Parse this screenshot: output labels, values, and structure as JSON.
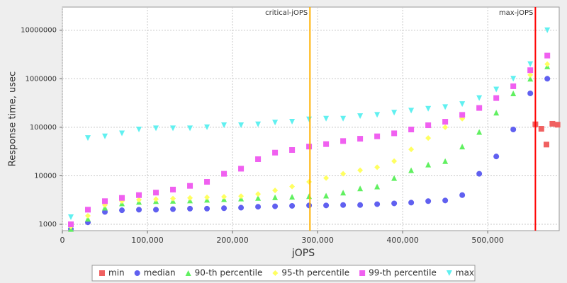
{
  "chart_data": {
    "type": "scatter",
    "x_label": "jOPS",
    "y_label": "Response time, usec",
    "xlim": [
      0,
      584000
    ],
    "ylim": [
      740,
      30000000
    ],
    "log_y": true,
    "grid": true,
    "xticks": [
      0,
      {
        "value": 100000,
        "label": "100,000"
      },
      {
        "value": 200000,
        "label": "200,000"
      },
      {
        "value": 300000,
        "label": "300,000"
      },
      {
        "value": 400000,
        "label": "400,000"
      },
      {
        "value": 500000,
        "label": "500,000"
      }
    ],
    "yticks": [
      1000,
      10000,
      100000,
      1000000,
      10000000
    ],
    "annotations": [
      {
        "x": 291000,
        "label": "critical-jOPS",
        "color": "#ffb000"
      },
      {
        "x": 556000,
        "label": "max-jOPS",
        "color": "#ff0000"
      }
    ],
    "x": [
      10000,
      30000,
      50000,
      70000,
      90000,
      110000,
      130000,
      150000,
      170000,
      190000,
      210000,
      230000,
      250000,
      270000,
      290000,
      310000,
      330000,
      350000,
      370000,
      390000,
      410000,
      430000,
      450000,
      470000,
      490000,
      510000,
      530000,
      550000,
      570000
    ],
    "series": [
      {
        "name": "min",
        "color": "#f06060",
        "marker": "square",
        "x": [
          556000,
          563000,
          569000,
          576000,
          582000
        ],
        "values": [
          115000,
          93000,
          44000,
          118000,
          113000
        ]
      },
      {
        "name": "median",
        "color": "#6060f0",
        "marker": "circle",
        "values": [
          800,
          1100,
          1800,
          1950,
          2000,
          2000,
          2050,
          2100,
          2100,
          2150,
          2200,
          2300,
          2350,
          2400,
          2450,
          2450,
          2500,
          2500,
          2600,
          2700,
          2800,
          3000,
          3100,
          4000,
          11000,
          25000,
          90000,
          500000,
          1000000
        ]
      },
      {
        "name": "90-th percentile",
        "color": "#60f060",
        "marker": "triangle",
        "values": [
          800,
          1300,
          2200,
          2700,
          2900,
          3000,
          3050,
          3100,
          3200,
          3300,
          3400,
          3500,
          3600,
          3700,
          3800,
          3900,
          4500,
          5500,
          6000,
          9000,
          13000,
          17000,
          20000,
          40000,
          80000,
          200000,
          500000,
          1000000,
          1800000
        ]
      },
      {
        "name": "95-th percentile",
        "color": "#ffff60",
        "marker": "diamond",
        "values": [
          900,
          1500,
          2500,
          3000,
          3200,
          3300,
          3400,
          3500,
          3600,
          3700,
          3800,
          4200,
          5000,
          6000,
          7500,
          9000,
          11000,
          13000,
          15000,
          20000,
          35000,
          60000,
          100000,
          150000,
          250000,
          400000,
          700000,
          1200000,
          2000000
        ]
      },
      {
        "name": "99-th percentile",
        "color": "#f060f0",
        "marker": "square",
        "values": [
          1000,
          2000,
          3000,
          3500,
          4000,
          4500,
          5200,
          6200,
          7500,
          11000,
          14000,
          22000,
          30000,
          34000,
          40000,
          45000,
          52000,
          58000,
          65000,
          75000,
          90000,
          110000,
          130000,
          180000,
          250000,
          400000,
          700000,
          1500000,
          3000000
        ]
      },
      {
        "name": "max",
        "color": "#60f0f0",
        "marker": "down",
        "values": [
          1400,
          60000,
          65000,
          75000,
          90000,
          95000,
          95000,
          95000,
          100000,
          110000,
          110000,
          115000,
          125000,
          130000,
          145000,
          150000,
          150000,
          170000,
          180000,
          200000,
          220000,
          240000,
          260000,
          300000,
          400000,
          600000,
          1000000,
          2000000,
          10000000
        ]
      }
    ]
  }
}
